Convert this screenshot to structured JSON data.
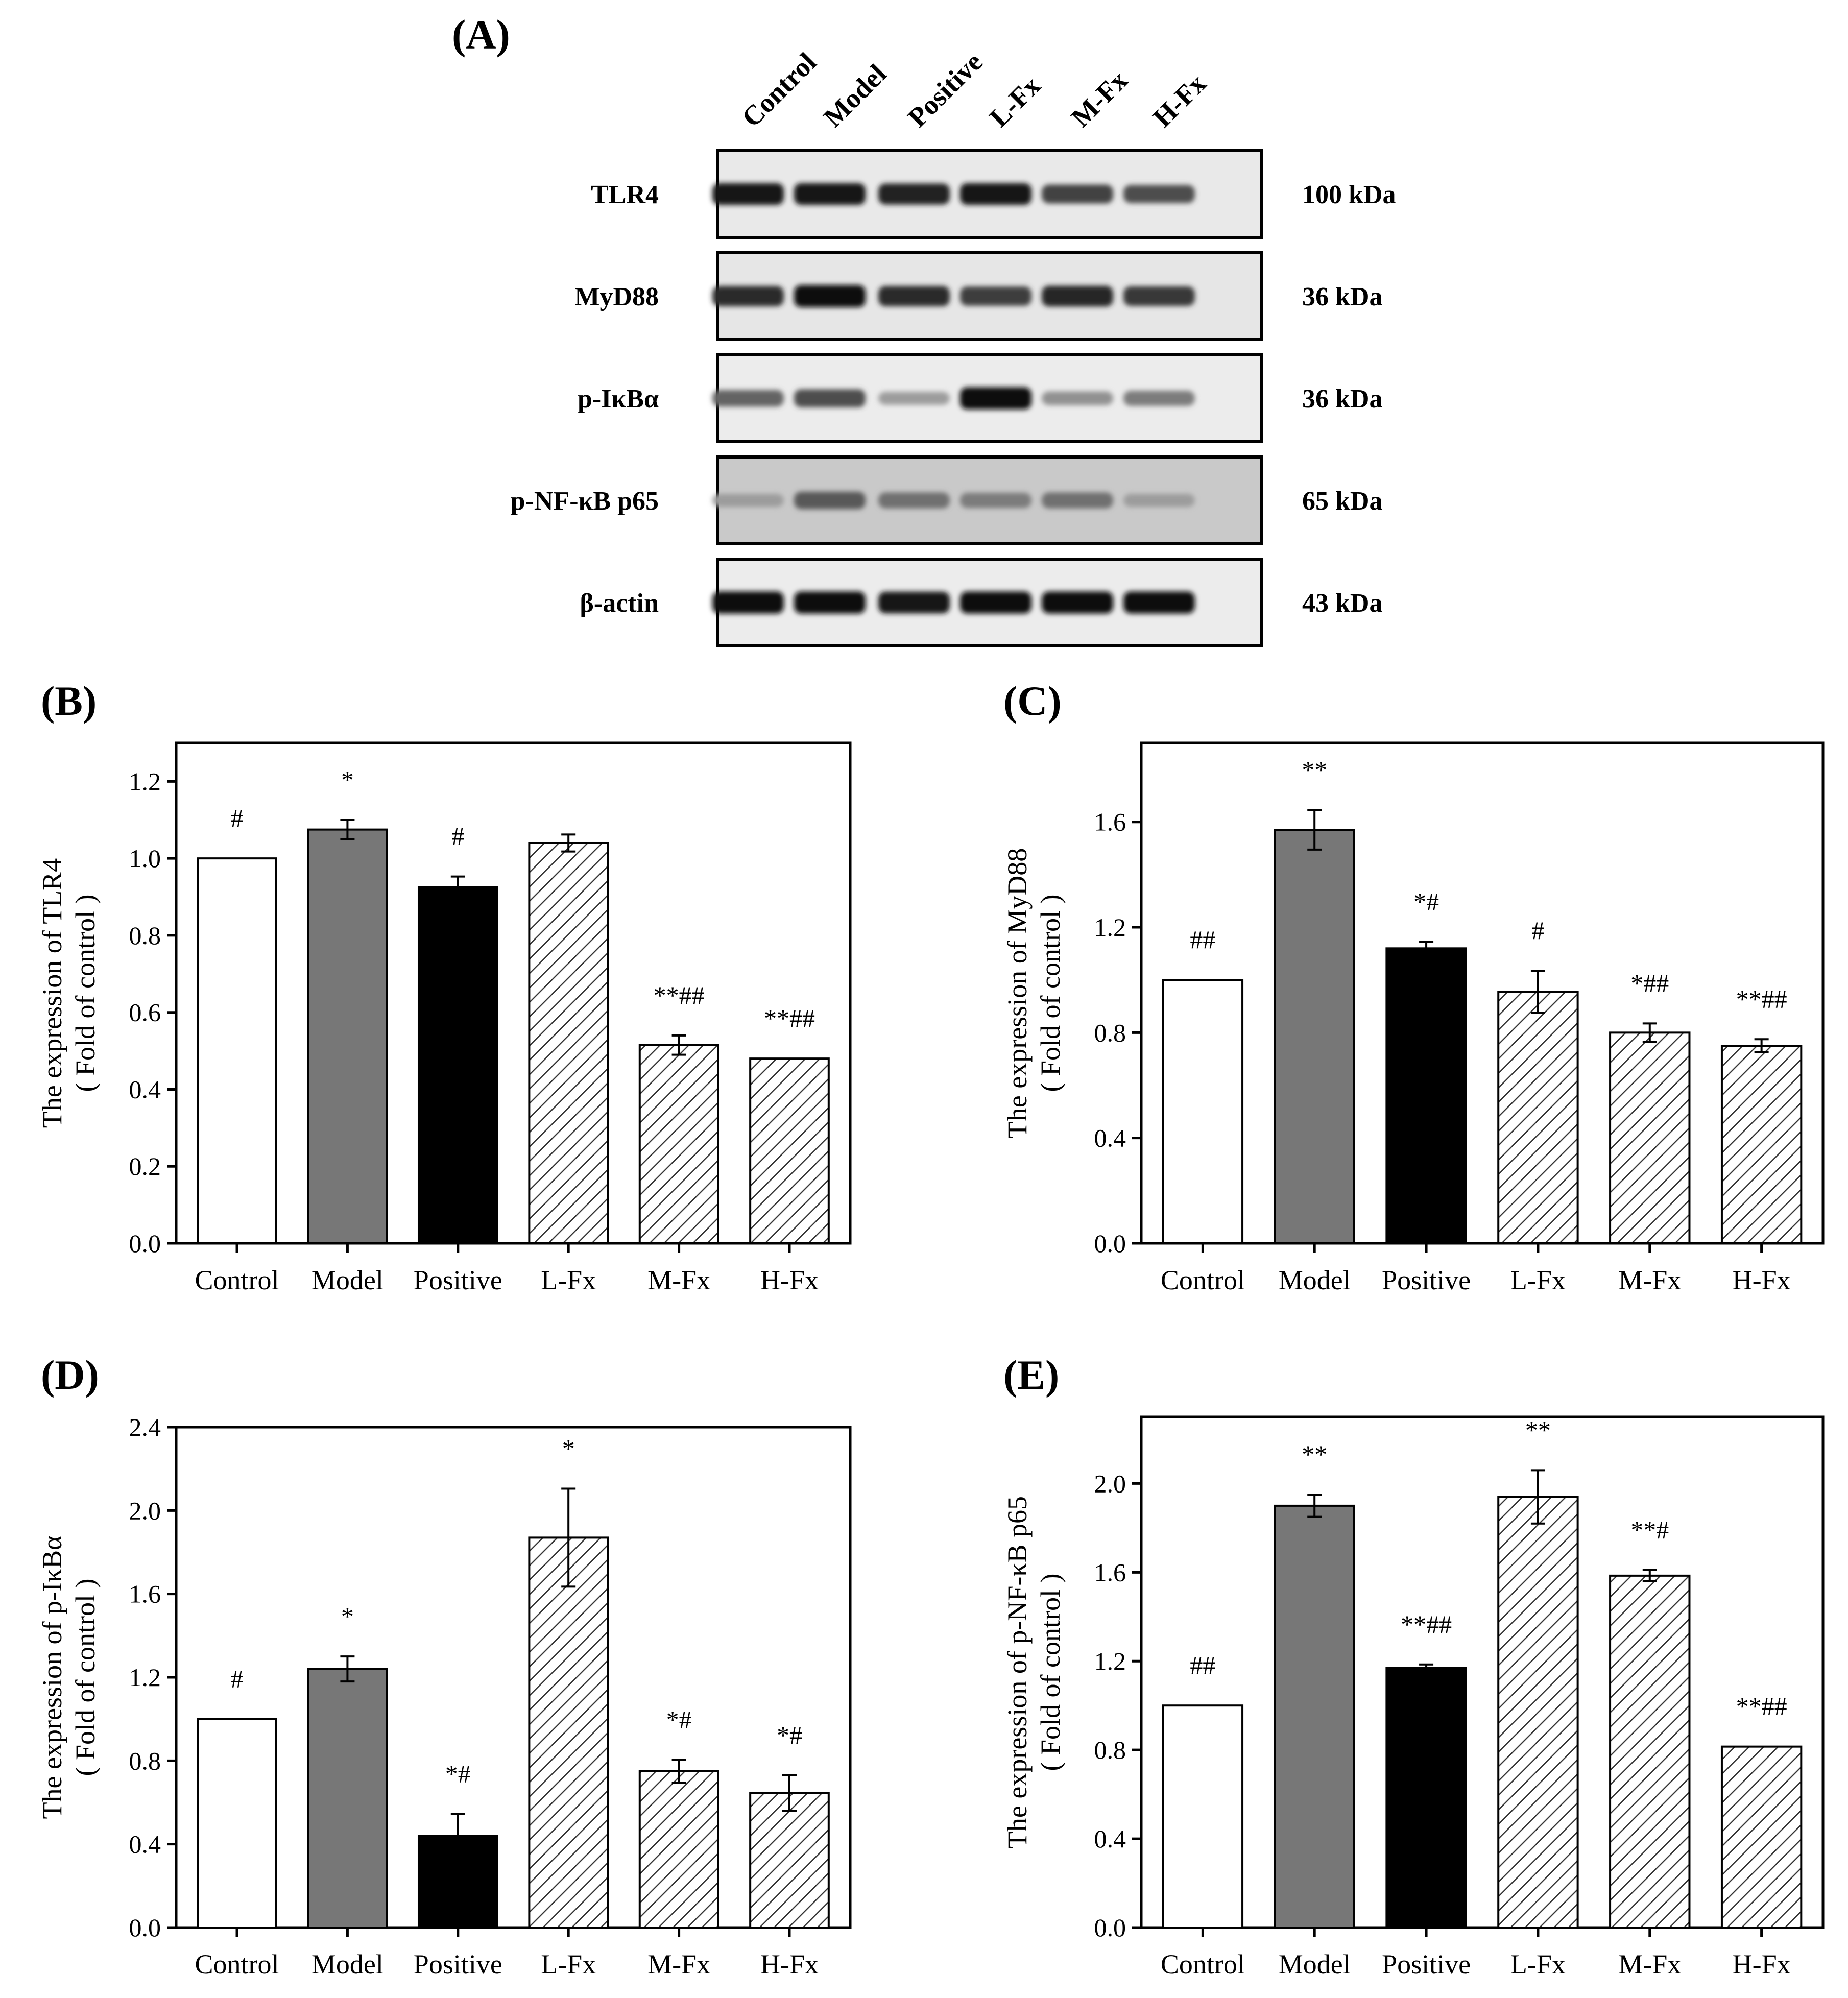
{
  "figure": {
    "western_blot": {
      "panel_label": "(A)",
      "lanes": [
        "Control",
        "Model",
        "Positive",
        "L-Fx",
        "M-Fx",
        "H-Fx"
      ],
      "rows": [
        {
          "protein": "TLR4",
          "size": "100 kDa",
          "band_intensity": [
            0.95,
            0.95,
            0.9,
            0.95,
            0.75,
            0.7
          ],
          "background": "#e9e9e9"
        },
        {
          "protein": "MyD88",
          "size": "36 kDa",
          "band_intensity": [
            0.85,
            0.98,
            0.85,
            0.78,
            0.88,
            0.8
          ],
          "background": "#e6e6e6"
        },
        {
          "protein": "p-IκBα",
          "size": "36 kDa",
          "band_intensity": [
            0.6,
            0.7,
            0.35,
            0.98,
            0.4,
            0.5
          ],
          "background": "#ececec"
        },
        {
          "protein": "p-NF-κB p65",
          "size": "65 kDa",
          "band_intensity": [
            0.35,
            0.65,
            0.55,
            0.5,
            0.55,
            0.35
          ],
          "background": "#c9c9c9"
        },
        {
          "protein": "β-actin",
          "size": "43 kDa",
          "band_intensity": [
            0.98,
            0.98,
            0.95,
            0.97,
            0.97,
            0.97
          ],
          "background": "#ececec"
        }
      ]
    },
    "legend_styles": {
      "Control": "white",
      "Model": "gray",
      "Positive": "black",
      "L-Fx": "hatched",
      "M-Fx": "hatched",
      "H-Fx": "hatched"
    }
  },
  "chart_data": [
    {
      "panel_label": "(B)",
      "type": "bar",
      "categories": [
        "Control",
        "Model",
        "Positive",
        "L-Fx",
        "M-Fx",
        "H-Fx"
      ],
      "values": [
        1.0,
        1.075,
        0.925,
        1.04,
        0.515,
        0.48
      ],
      "errors": [
        0.0,
        0.025,
        0.028,
        0.022,
        0.025,
        0.0
      ],
      "significance": [
        "#",
        "*",
        "#",
        "",
        "**##",
        "**##"
      ],
      "ylabel": [
        "The expression of TLR4",
        "( Fold of control )"
      ],
      "xlabel": "",
      "ylim": [
        0,
        1.3
      ],
      "yticks": [
        0.0,
        0.2,
        0.4,
        0.6,
        0.8,
        1.0,
        1.2
      ],
      "tick_labels": [
        "0.0",
        "0.2",
        "0.4",
        "0.6",
        "0.8",
        "1.0",
        "1.2"
      ]
    },
    {
      "panel_label": "(C)",
      "type": "bar",
      "categories": [
        "Control",
        "Model",
        "Positive",
        "L-Fx",
        "M-Fx",
        "H-Fx"
      ],
      "values": [
        1.0,
        1.57,
        1.12,
        0.955,
        0.8,
        0.75
      ],
      "errors": [
        0.0,
        0.075,
        0.025,
        0.08,
        0.035,
        0.025
      ],
      "significance": [
        "##",
        "**",
        "*#",
        "#",
        "*##",
        "**##"
      ],
      "ylabel": [
        "The expression of MyD88",
        "( Fold of control )"
      ],
      "xlabel": "",
      "ylim": [
        0,
        1.9
      ],
      "yticks": [
        0.0,
        0.4,
        0.8,
        1.2,
        1.6
      ],
      "tick_labels": [
        "0.0",
        "0.4",
        "0.8",
        "1.2",
        "1.6"
      ]
    },
    {
      "panel_label": "(D)",
      "type": "bar",
      "categories": [
        "Control",
        "Model",
        "Positive",
        "L-Fx",
        "M-Fx",
        "H-Fx"
      ],
      "values": [
        1.0,
        1.24,
        0.44,
        1.87,
        0.75,
        0.645
      ],
      "errors": [
        0.0,
        0.06,
        0.105,
        0.235,
        0.055,
        0.085
      ],
      "significance": [
        "#",
        "*",
        "*#",
        "*",
        "*#",
        "*#"
      ],
      "ylabel": [
        "The expression of p-IκBα",
        "( Fold of control )"
      ],
      "xlabel": "",
      "ylim": [
        0,
        2.4
      ],
      "yticks": [
        0.0,
        0.4,
        0.8,
        1.2,
        1.6,
        2.0,
        2.4
      ],
      "tick_labels": [
        "0.0",
        "0.4",
        "0.8",
        "1.2",
        "1.6",
        "2.0",
        "2.4"
      ]
    },
    {
      "panel_label": "(E)",
      "type": "bar",
      "categories": [
        "Control",
        "Model",
        "Positive",
        "L-Fx",
        "M-Fx",
        "H-Fx"
      ],
      "values": [
        1.0,
        1.9,
        1.17,
        1.94,
        1.585,
        0.815
      ],
      "errors": [
        0.0,
        0.05,
        0.015,
        0.12,
        0.025,
        0.0
      ],
      "significance": [
        "##",
        "**",
        "**##",
        "**",
        "**#",
        "**##"
      ],
      "ylabel": [
        "The expression of p-NF-κB p65",
        "( Fold of control )"
      ],
      "xlabel": "",
      "ylim": [
        0,
        2.3
      ],
      "yticks": [
        0.0,
        0.4,
        0.8,
        1.2,
        1.6,
        2.0
      ],
      "tick_labels": [
        "0.0",
        "0.4",
        "0.8",
        "1.2",
        "1.6",
        "2.0"
      ]
    }
  ]
}
